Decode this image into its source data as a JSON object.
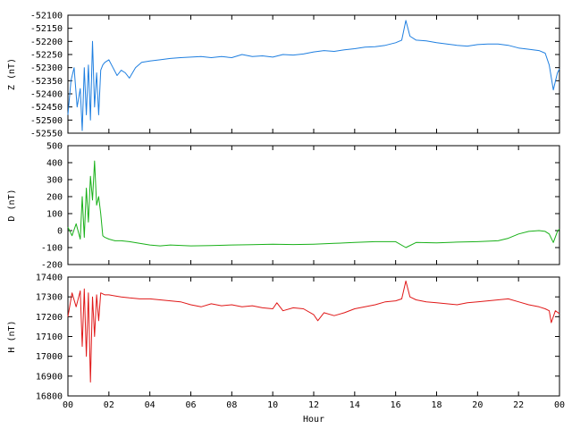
{
  "chart_data": [
    {
      "type": "line",
      "ylabel": "Z (nT)",
      "ylim": [
        -52550,
        -52100
      ],
      "yticks": [
        "-52100",
        "-52150",
        "-52200",
        "-52250",
        "-52300",
        "-52350",
        "-52400",
        "-52450",
        "-52500",
        "-52550"
      ],
      "xlim": [
        0,
        24
      ],
      "grid": false,
      "series": [
        {
          "color": "#1f7fe0",
          "x": [
            0,
            0.15,
            0.3,
            0.45,
            0.6,
            0.7,
            0.8,
            0.9,
            1.0,
            1.1,
            1.2,
            1.3,
            1.4,
            1.5,
            1.6,
            1.7,
            1.8,
            2.0,
            2.2,
            2.4,
            2.6,
            2.8,
            3.0,
            3.3,
            3.6,
            4.0,
            4.5,
            5.0,
            5.5,
            6.0,
            6.5,
            7.0,
            7.5,
            8.0,
            8.5,
            9.0,
            9.5,
            10.0,
            10.5,
            11.0,
            11.5,
            12.0,
            12.5,
            13.0,
            13.5,
            14.0,
            14.5,
            15.0,
            15.5,
            16.0,
            16.3,
            16.5,
            16.7,
            17.0,
            17.5,
            18.0,
            18.5,
            19.0,
            19.5,
            20.0,
            20.5,
            21.0,
            21.5,
            22.0,
            22.5,
            23.0,
            23.3,
            23.5,
            23.7,
            23.9,
            24.0
          ],
          "values": [
            -52480,
            -52350,
            -52300,
            -52450,
            -52380,
            -52540,
            -52300,
            -52480,
            -52290,
            -52500,
            -52200,
            -52450,
            -52320,
            -52480,
            -52310,
            -52290,
            -52280,
            -52270,
            -52300,
            -52330,
            -52310,
            -52320,
            -52340,
            -52300,
            -52280,
            -52275,
            -52270,
            -52265,
            -52262,
            -52260,
            -52258,
            -52262,
            -52258,
            -52262,
            -52250,
            -52258,
            -52255,
            -52260,
            -52250,
            -52252,
            -52248,
            -52240,
            -52235,
            -52238,
            -52232,
            -52228,
            -52222,
            -52220,
            -52215,
            -52205,
            -52195,
            -52120,
            -52180,
            -52195,
            -52198,
            -52205,
            -52210,
            -52215,
            -52218,
            -52212,
            -52210,
            -52210,
            -52215,
            -52225,
            -52230,
            -52235,
            -52245,
            -52290,
            -52385,
            -52320,
            -52305
          ]
        }
      ]
    },
    {
      "type": "line",
      "ylabel": "D (nT)",
      "ylim": [
        -200,
        500
      ],
      "yticks": [
        "500",
        "400",
        "300",
        "200",
        "100",
        "0",
        "-100",
        "-200"
      ],
      "xlim": [
        0,
        24
      ],
      "grid": false,
      "series": [
        {
          "color": "#18b018",
          "x": [
            0,
            0.2,
            0.4,
            0.6,
            0.7,
            0.8,
            0.9,
            1.0,
            1.1,
            1.2,
            1.3,
            1.4,
            1.5,
            1.6,
            1.7,
            1.8,
            2.0,
            2.3,
            2.6,
            3.0,
            3.5,
            4.0,
            4.5,
            5.0,
            6.0,
            7.0,
            8.0,
            9.0,
            10.0,
            11.0,
            12.0,
            13.0,
            14.0,
            15.0,
            16.0,
            16.5,
            17.0,
            18.0,
            19.0,
            20.0,
            21.0,
            21.5,
            22.0,
            22.5,
            23.0,
            23.3,
            23.5,
            23.7,
            23.9,
            24.0
          ],
          "values": [
            20,
            -30,
            40,
            -50,
            200,
            -40,
            250,
            50,
            320,
            180,
            410,
            150,
            200,
            100,
            -30,
            -40,
            -50,
            -60,
            -60,
            -65,
            -75,
            -85,
            -90,
            -85,
            -90,
            -88,
            -85,
            -83,
            -80,
            -82,
            -80,
            -75,
            -70,
            -65,
            -65,
            -100,
            -70,
            -72,
            -68,
            -65,
            -60,
            -45,
            -20,
            -5,
            0,
            -5,
            -20,
            -70,
            -5,
            10
          ]
        }
      ]
    },
    {
      "type": "line",
      "ylabel": "H (nT)",
      "ylim": [
        16800,
        17400
      ],
      "yticks": [
        "17400",
        "17300",
        "17200",
        "17100",
        "17000",
        "16900",
        "16800"
      ],
      "xlim": [
        0,
        24
      ],
      "xlabel": "Hour",
      "xticks": [
        "00",
        "02",
        "04",
        "06",
        "08",
        "10",
        "12",
        "14",
        "16",
        "18",
        "20",
        "22",
        "00"
      ],
      "grid": false,
      "series": [
        {
          "color": "#e01818",
          "x": [
            0,
            0.2,
            0.4,
            0.6,
            0.7,
            0.8,
            0.9,
            1.0,
            1.1,
            1.2,
            1.3,
            1.4,
            1.5,
            1.6,
            1.8,
            2.0,
            2.3,
            2.6,
            3.0,
            3.5,
            4.0,
            4.5,
            5.0,
            5.5,
            6.0,
            6.5,
            7.0,
            7.5,
            8.0,
            8.5,
            9.0,
            9.5,
            10.0,
            10.2,
            10.5,
            11.0,
            11.5,
            12.0,
            12.2,
            12.5,
            13.0,
            13.5,
            14.0,
            14.5,
            15.0,
            15.5,
            16.0,
            16.3,
            16.5,
            16.7,
            17.0,
            17.5,
            18.0,
            18.5,
            19.0,
            19.5,
            20.0,
            20.5,
            21.0,
            21.5,
            22.0,
            22.5,
            23.0,
            23.3,
            23.5,
            23.6,
            23.8,
            24.0
          ],
          "values": [
            17200,
            17320,
            17250,
            17330,
            17050,
            17340,
            17000,
            17320,
            16870,
            17300,
            17100,
            17310,
            17180,
            17320,
            17310,
            17310,
            17305,
            17300,
            17295,
            17290,
            17290,
            17285,
            17280,
            17275,
            17260,
            17250,
            17265,
            17255,
            17260,
            17250,
            17255,
            17245,
            17240,
            17270,
            17230,
            17245,
            17240,
            17210,
            17180,
            17220,
            17205,
            17220,
            17240,
            17250,
            17260,
            17275,
            17280,
            17290,
            17380,
            17300,
            17285,
            17275,
            17270,
            17265,
            17260,
            17270,
            17275,
            17280,
            17285,
            17290,
            17275,
            17260,
            17250,
            17240,
            17230,
            17170,
            17230,
            17215
          ]
        }
      ]
    }
  ]
}
